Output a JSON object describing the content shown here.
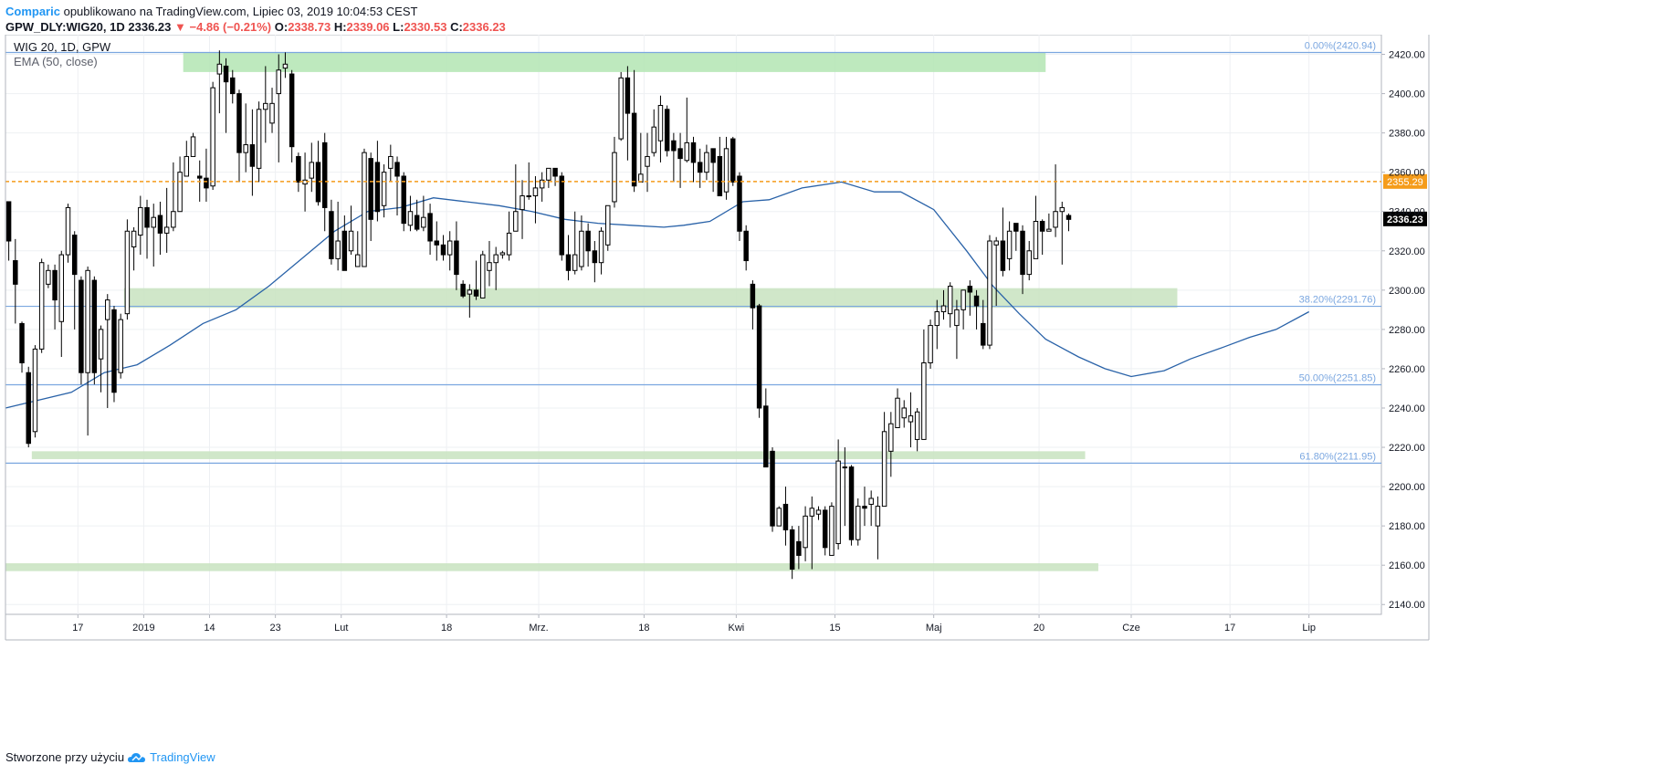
{
  "header": {
    "author": "Comparic",
    "published_on": "opublikowano na TradingView.com, Lipiec 03, 2019 10:04:53 CEST",
    "symbol": "GPW_DLY:WIG20, 1D",
    "last": "2336.23",
    "change": "−4.86 (−0.21%)",
    "open_label": "O:",
    "open": "2338.73",
    "high_label": "H:",
    "high": "2339.06",
    "low_label": "L:",
    "low": "2330.53",
    "close_label": "C:",
    "close": "2336.23"
  },
  "legend": {
    "title": "WIG 20, 1D, GPW",
    "indicator": "EMA (50, close)"
  },
  "footer": {
    "created_with": "Stworzone przy użyciu",
    "brand": "TradingView"
  },
  "colors": {
    "up_candle": "#ffffff",
    "down_candle": "#000000",
    "ema": "#2962a8",
    "fib_line": "#7ba7e0",
    "support_zone": "#c8e3c0",
    "top_zone": "#b3e5b3",
    "dashed_level": "#f59c1a",
    "price_badge": "#000000"
  },
  "chart_data": {
    "type": "candlestick",
    "ylim": [
      2135,
      2430
    ],
    "y_ticks": [
      2140,
      2160,
      2180,
      2200,
      2220,
      2240,
      2260,
      2280,
      2300,
      2320,
      2340,
      2360,
      2380,
      2400,
      2420
    ],
    "y_tick_labels": [
      "2140.00",
      "2160.00",
      "2180.00",
      "2200.00",
      "2220.00",
      "2240.00",
      "2260.00",
      "2280.00",
      "2300.00",
      "2320.00",
      "2340.00",
      "2360.00",
      "2380.00",
      "2400.00",
      "2420.00"
    ],
    "x_ticks": [
      {
        "label": "17",
        "x": 11
      },
      {
        "label": "2019",
        "x": 21
      },
      {
        "label": "14",
        "x": 31
      },
      {
        "label": "23",
        "x": 41
      },
      {
        "label": "Lut",
        "x": 51
      },
      {
        "label": "18",
        "x": 67
      },
      {
        "label": "Mrz.",
        "x": 81
      },
      {
        "label": "18",
        "x": 97
      },
      {
        "label": "Kwi",
        "x": 111
      },
      {
        "label": "15",
        "x": 126
      },
      {
        "label": "Maj",
        "x": 141
      },
      {
        "label": "20",
        "x": 157
      },
      {
        "label": "Cze",
        "x": 171
      },
      {
        "label": "17",
        "x": 186
      },
      {
        "label": "Lip",
        "x": 198
      }
    ],
    "x_range": [
      0,
      209
    ],
    "candles": [
      [
        2345,
        2325,
        2335,
        2315
      ],
      [
        2315,
        2303,
        2326,
        2283
      ],
      [
        2283,
        2263,
        2284,
        2258
      ],
      [
        2258,
        2222,
        2261,
        2220
      ],
      [
        2228,
        2270,
        2272,
        2225
      ],
      [
        2270,
        2314,
        2316,
        2268
      ],
      [
        2303,
        2310,
        2313,
        2301
      ],
      [
        2310,
        2295,
        2313,
        2280
      ],
      [
        2284,
        2318,
        2320,
        2266
      ],
      [
        2318,
        2342,
        2344,
        2314
      ],
      [
        2328,
        2308,
        2330,
        2280
      ],
      [
        2305,
        2258,
        2307,
        2252
      ],
      [
        2258,
        2310,
        2312,
        2226
      ],
      [
        2305,
        2258,
        2307,
        2252
      ],
      [
        2265,
        2280,
        2282,
        2248
      ],
      [
        2285,
        2295,
        2298,
        2240
      ],
      [
        2290,
        2248,
        2292,
        2243
      ],
      [
        2258,
        2285,
        2288,
        2255
      ],
      [
        2288,
        2330,
        2336,
        2285
      ],
      [
        2322,
        2330,
        2332,
        2310
      ],
      [
        2328,
        2342,
        2348,
        2318
      ],
      [
        2342,
        2332,
        2346,
        2316
      ],
      [
        2332,
        2337,
        2344,
        2312
      ],
      [
        2338,
        2329,
        2345,
        2318
      ],
      [
        2329,
        2332,
        2352,
        2319
      ],
      [
        2332,
        2340,
        2365,
        2330
      ],
      [
        2340,
        2360,
        2368,
        2345
      ],
      [
        2358,
        2368,
        2376,
        2358
      ],
      [
        2368,
        2378,
        2380,
        2368
      ],
      [
        2358,
        2357,
        2366,
        2345
      ],
      [
        2357,
        2352,
        2372,
        2345
      ],
      [
        2353,
        2403,
        2406,
        2351
      ],
      [
        2410,
        2415,
        2422,
        2390
      ],
      [
        2414,
        2406,
        2418,
        2380
      ],
      [
        2408,
        2400,
        2412,
        2395
      ],
      [
        2400,
        2370,
        2402,
        2355
      ],
      [
        2370,
        2374,
        2395,
        2360
      ],
      [
        2374,
        2363,
        2392,
        2348
      ],
      [
        2362,
        2392,
        2396,
        2355
      ],
      [
        2392,
        2395,
        2414,
        2375
      ],
      [
        2385,
        2395,
        2403,
        2380
      ],
      [
        2400,
        2412,
        2420,
        2365
      ],
      [
        2413,
        2415,
        2421,
        2408
      ],
      [
        2410,
        2373,
        2412,
        2365
      ],
      [
        2368,
        2355,
        2370,
        2350
      ],
      [
        2354,
        2356,
        2370,
        2340
      ],
      [
        2357,
        2365,
        2375,
        2350
      ],
      [
        2365,
        2345,
        2376,
        2343
      ],
      [
        2375,
        2342,
        2380,
        2330
      ],
      [
        2340,
        2316,
        2346,
        2313
      ],
      [
        2316,
        2325,
        2345,
        2310
      ],
      [
        2330,
        2310,
        2338,
        2318
      ],
      [
        2320,
        2330,
        2343,
        2318
      ],
      [
        2312,
        2318,
        2330,
        2312
      ],
      [
        2312,
        2370,
        2372,
        2312
      ],
      [
        2367,
        2336,
        2370,
        2325
      ],
      [
        2365,
        2340,
        2376,
        2335
      ],
      [
        2343,
        2360,
        2364,
        2337
      ],
      [
        2362,
        2368,
        2374,
        2355
      ],
      [
        2365,
        2358,
        2368,
        2338
      ],
      [
        2358,
        2334,
        2360,
        2330
      ],
      [
        2333,
        2340,
        2348,
        2330
      ],
      [
        2338,
        2331,
        2346,
        2330
      ],
      [
        2332,
        2337,
        2348,
        2330
      ],
      [
        2339,
        2325,
        2344,
        2318
      ],
      [
        2325,
        2323,
        2335,
        2315
      ],
      [
        2323,
        2318,
        2328,
        2315
      ],
      [
        2318,
        2325,
        2330,
        2310
      ],
      [
        2325,
        2308,
        2335,
        2300
      ],
      [
        2303,
        2297,
        2305,
        2296
      ],
      [
        2298,
        2300,
        2303,
        2286
      ],
      [
        2300,
        2297,
        2315,
        2295
      ],
      [
        2296,
        2318,
        2320,
        2296
      ],
      [
        2310,
        2314,
        2325,
        2302
      ],
      [
        2314,
        2318,
        2322,
        2300
      ],
      [
        2318,
        2319,
        2320,
        2316
      ],
      [
        2318,
        2329,
        2340,
        2315
      ],
      [
        2330,
        2340,
        2364,
        2330
      ],
      [
        2341,
        2348,
        2356,
        2326
      ],
      [
        2348,
        2348,
        2365,
        2346
      ],
      [
        2348,
        2352,
        2358,
        2334
      ],
      [
        2352,
        2356,
        2360,
        2345
      ],
      [
        2356,
        2362,
        2360,
        2352
      ],
      [
        2362,
        2358,
        2361,
        2353
      ],
      [
        2358,
        2318,
        2360,
        2315
      ],
      [
        2318,
        2310,
        2328,
        2305
      ],
      [
        2310,
        2318,
        2340,
        2308
      ],
      [
        2312,
        2330,
        2338,
        2310
      ],
      [
        2330,
        2320,
        2334,
        2312
      ],
      [
        2320,
        2314,
        2325,
        2304
      ],
      [
        2314,
        2330,
        2332,
        2308
      ],
      [
        2323,
        2343,
        2343,
        2320
      ],
      [
        2345,
        2370,
        2378,
        2342
      ],
      [
        2377,
        2408,
        2411,
        2376
      ],
      [
        2408,
        2390,
        2414,
        2366
      ],
      [
        2390,
        2353,
        2412,
        2350
      ],
      [
        2355,
        2359,
        2380,
        2355
      ],
      [
        2363,
        2368,
        2380,
        2350
      ],
      [
        2370,
        2383,
        2392,
        2368
      ],
      [
        2376,
        2394,
        2399,
        2365
      ],
      [
        2392,
        2371,
        2394,
        2368
      ],
      [
        2376,
        2371,
        2380,
        2355
      ],
      [
        2372,
        2367,
        2380,
        2352
      ],
      [
        2366,
        2375,
        2398,
        2365
      ],
      [
        2375,
        2365,
        2378,
        2355
      ],
      [
        2365,
        2360,
        2372,
        2352
      ],
      [
        2360,
        2370,
        2374,
        2356
      ],
      [
        2372,
        2365,
        2372,
        2350
      ],
      [
        2368,
        2348,
        2378,
        2350
      ],
      [
        2350,
        2372,
        2378,
        2346
      ],
      [
        2377,
        2355,
        2378,
        2353
      ],
      [
        2358,
        2330,
        2360,
        2325
      ],
      [
        2330,
        2315,
        2333,
        2310
      ],
      [
        2303,
        2291,
        2305,
        2280
      ],
      [
        2292,
        2240,
        2293,
        2235
      ],
      [
        2241,
        2210,
        2250,
        2215
      ],
      [
        2218,
        2180,
        2220,
        2177
      ],
      [
        2180,
        2189,
        2190,
        2188
      ],
      [
        2191,
        2178,
        2200,
        2170
      ],
      [
        2178,
        2158,
        2180,
        2153
      ],
      [
        2172,
        2165,
        2180,
        2158
      ],
      [
        2169,
        2185,
        2190,
        2162
      ],
      [
        2185,
        2189,
        2195,
        2158
      ],
      [
        2186,
        2188,
        2190,
        2183
      ],
      [
        2188,
        2169,
        2190,
        2165
      ],
      [
        2165,
        2190,
        2192,
        2168
      ],
      [
        2171,
        2213,
        2224,
        2168
      ],
      [
        2210,
        2210,
        2220,
        2180
      ],
      [
        2210,
        2173,
        2211,
        2170
      ],
      [
        2173,
        2190,
        2194,
        2170
      ],
      [
        2190,
        2189,
        2200,
        2180
      ],
      [
        2191,
        2194,
        2198,
        2180
      ],
      [
        2180,
        2190,
        2195,
        2163
      ],
      [
        2190,
        2228,
        2238,
        2190
      ],
      [
        2218,
        2232,
        2238,
        2205
      ],
      [
        2230,
        2245,
        2250,
        2235
      ],
      [
        2235,
        2240,
        2244,
        2230
      ],
      [
        2233,
        2236,
        2248,
        2220
      ],
      [
        2224,
        2238,
        2240,
        2218
      ],
      [
        2224,
        2263,
        2280,
        2225
      ],
      [
        2263,
        2282,
        2285,
        2260
      ],
      [
        2282,
        2289,
        2295,
        2270
      ],
      [
        2289,
        2292,
        2300,
        2285
      ],
      [
        2288,
        2302,
        2304,
        2281
      ],
      [
        2282,
        2290,
        2295,
        2265
      ],
      [
        2290,
        2300,
        2300,
        2280
      ],
      [
        2302,
        2299,
        2305,
        2287
      ],
      [
        2297,
        2292,
        2300,
        2280
      ],
      [
        2283,
        2272,
        2295,
        2270
      ],
      [
        2272,
        2325,
        2328,
        2270
      ],
      [
        2323,
        2325,
        2327,
        2292
      ],
      [
        2325,
        2310,
        2342,
        2307
      ],
      [
        2316,
        2330,
        2335,
        2310
      ],
      [
        2334,
        2330,
        2334,
        2320
      ],
      [
        2330,
        2308,
        2333,
        2298
      ],
      [
        2308,
        2320,
        2325,
        2305
      ],
      [
        2316,
        2335,
        2348,
        2318
      ],
      [
        2335,
        2330,
        2336,
        2318
      ],
      [
        2330,
        2331,
        2339,
        2330
      ],
      [
        2332,
        2340,
        2364,
        2327
      ],
      [
        2340,
        2342,
        2345,
        2313
      ],
      [
        2338,
        2336,
        2339,
        2330
      ]
    ],
    "ema": [
      [
        0,
        2240
      ],
      [
        10,
        2248
      ],
      [
        15,
        2258
      ],
      [
        20,
        2262
      ],
      [
        25,
        2272
      ],
      [
        30,
        2283
      ],
      [
        35,
        2290
      ],
      [
        40,
        2302
      ],
      [
        45,
        2316
      ],
      [
        50,
        2330
      ],
      [
        55,
        2340
      ],
      [
        60,
        2342
      ],
      [
        65,
        2347
      ],
      [
        70,
        2345
      ],
      [
        75,
        2343
      ],
      [
        80,
        2340
      ],
      [
        85,
        2336
      ],
      [
        90,
        2334
      ],
      [
        95,
        2333
      ],
      [
        100,
        2332
      ],
      [
        103,
        2333
      ],
      [
        107,
        2335
      ],
      [
        112,
        2345
      ],
      [
        116,
        2346
      ],
      [
        121,
        2352
      ],
      [
        127,
        2355
      ],
      [
        132,
        2350
      ],
      [
        136,
        2350
      ],
      [
        141,
        2341
      ],
      [
        146,
        2320
      ],
      [
        150,
        2302
      ],
      [
        154,
        2288
      ],
      [
        158,
        2275
      ],
      [
        163,
        2266
      ],
      [
        167,
        2260
      ],
      [
        171,
        2256
      ],
      [
        176,
        2259
      ],
      [
        180,
        2265
      ],
      [
        185,
        2271
      ],
      [
        189,
        2276
      ],
      [
        193,
        2280
      ],
      [
        198,
        2289
      ]
    ],
    "fib_levels": [
      {
        "label": "0.00%(2420.94)",
        "value": 2420.94
      },
      {
        "label": "38.20%(2291.76)",
        "value": 2291.76
      },
      {
        "label": "50.00%(2251.85)",
        "value": 2251.85
      },
      {
        "label": "61.80%(2211.95)",
        "value": 2211.95
      }
    ],
    "zones": [
      {
        "name": "top-resistance-zone",
        "from_x": 27,
        "to_x": 158,
        "y_low": 2411,
        "y_high": 2421
      },
      {
        "name": "mid-support-zone",
        "from_x": 18,
        "to_x": 178,
        "y_low": 2291,
        "y_high": 2301
      },
      {
        "name": "lower-support-zone",
        "from_x": 4,
        "to_x": 164,
        "y_low": 2214,
        "y_high": 2218
      },
      {
        "name": "bottom-support-zone",
        "from_x": 0,
        "to_x": 166,
        "y_low": 2157,
        "y_high": 2161
      }
    ],
    "dashed_level": {
      "value": 2355.29,
      "label": "2355.29"
    },
    "last_price": {
      "value": 2336.23,
      "label": "2336.23"
    }
  }
}
